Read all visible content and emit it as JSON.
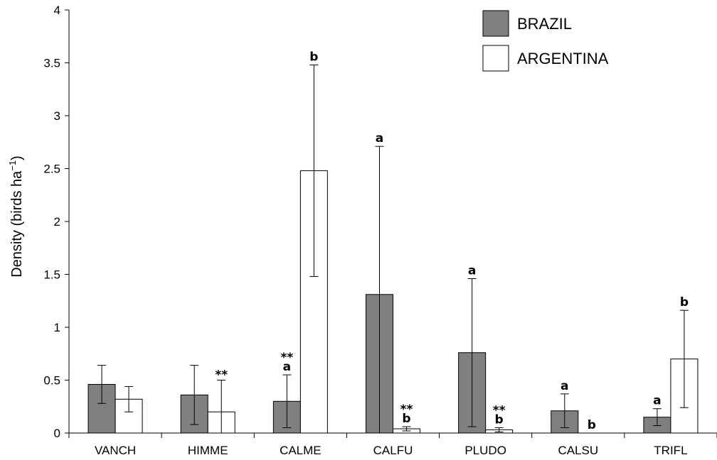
{
  "chart_data": {
    "type": "bar",
    "title": "",
    "xlabel": "",
    "ylabel": "Density (birds ha",
    "ylabel_sup": "−1",
    "ylabel_close": ")",
    "ylim": [
      0,
      4
    ],
    "yticks": [
      "0",
      "0.5",
      "1",
      "1.5",
      "2",
      "2.5",
      "3",
      "3.5",
      "4"
    ],
    "grid": false,
    "legend_position": "top-right",
    "categories": [
      "VANCH",
      "HIMME",
      "CALME",
      "CALFU",
      "PLUDO",
      "CALSU",
      "TRIFL"
    ],
    "series": [
      {
        "name": "BRAZIL",
        "color": "#808080",
        "values": [
          0.46,
          0.36,
          0.3,
          1.31,
          0.76,
          0.21,
          0.15
        ],
        "errors": [
          0.18,
          0.28,
          0.25,
          1.4,
          0.7,
          0.16,
          0.08
        ],
        "annotations": [
          "",
          "",
          "a",
          "a",
          "a",
          "a",
          "a"
        ],
        "stars": [
          "",
          "",
          "**",
          "",
          "",
          "",
          ""
        ]
      },
      {
        "name": "ARGENTINA",
        "color": "#ffffff",
        "values": [
          0.32,
          0.2,
          2.48,
          0.04,
          0.03,
          0.0,
          0.7
        ],
        "errors": [
          0.12,
          0.3,
          1.0,
          0.02,
          0.02,
          0.0,
          0.46
        ],
        "annotations": [
          "",
          "",
          "b",
          "b",
          "b",
          "b",
          "b"
        ],
        "stars": [
          "",
          "**",
          "",
          "**",
          "**",
          "",
          ""
        ]
      }
    ]
  }
}
